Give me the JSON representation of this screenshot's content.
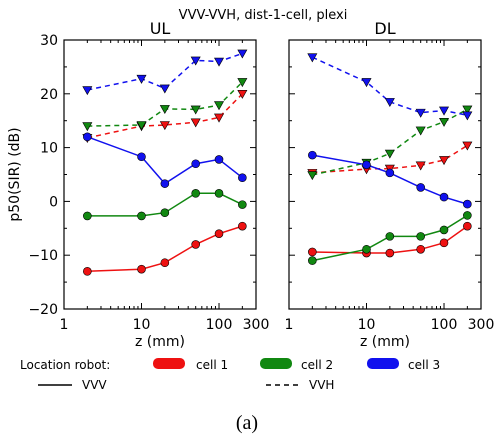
{
  "figure": {
    "title": "VVV-VVH, dist-1-cell, plexi",
    "caption": "(a)"
  },
  "legend": {
    "location_label": "Location robot:",
    "items": [
      {
        "label": "cell 1",
        "color": "#ee1111"
      },
      {
        "label": "cell 2",
        "color": "#118811"
      },
      {
        "label": "cell 3",
        "color": "#1111ee"
      }
    ],
    "solid_label": "VVV",
    "dashed_label": "VVH"
  },
  "chart_data": [
    {
      "type": "line",
      "title": "UL",
      "xlabel": "z (mm)",
      "ylabel": "p50(SIR) (dB)",
      "xscale": "log",
      "xlim": [
        1,
        300
      ],
      "ylim": [
        -20,
        30
      ],
      "xticks": [
        "1",
        "10",
        "100",
        "300"
      ],
      "yticks": [
        "30",
        "20",
        "10",
        "0",
        "−10",
        "−20"
      ],
      "x": [
        2,
        10,
        20,
        50,
        100,
        200
      ],
      "series": [
        {
          "name": "cell 1",
          "style": "VVV",
          "color": "#ee1111",
          "values": [
            -13,
            -12.6,
            -11.4,
            -8,
            -6,
            -4.6
          ]
        },
        {
          "name": "cell 2",
          "style": "VVV",
          "color": "#118811",
          "values": [
            -2.7,
            -2.7,
            -2.1,
            1.5,
            1.5,
            -0.6
          ]
        },
        {
          "name": "cell 3",
          "style": "VVV",
          "color": "#1111ee",
          "values": [
            12,
            8.3,
            3.3,
            7,
            7.8,
            4.4
          ]
        },
        {
          "name": "cell 1",
          "style": "VVH",
          "color": "#ee1111",
          "values": [
            11.8,
            14,
            14.2,
            14.7,
            15.6,
            20
          ]
        },
        {
          "name": "cell 2",
          "style": "VVH",
          "color": "#118811",
          "values": [
            14,
            14.2,
            17.2,
            17.1,
            17.9,
            22.2
          ]
        },
        {
          "name": "cell 3",
          "style": "VVH",
          "color": "#1111ee",
          "values": [
            20.7,
            22.8,
            21,
            26.2,
            26,
            27.5
          ]
        }
      ]
    },
    {
      "type": "line",
      "title": "DL",
      "xlabel": "z (mm)",
      "ylabel": "",
      "xscale": "log",
      "xlim": [
        1,
        300
      ],
      "ylim": [
        -20,
        30
      ],
      "xticks": [
        "1",
        "10",
        "100",
        "300"
      ],
      "yticks": [],
      "x": [
        2,
        10,
        20,
        50,
        100,
        200
      ],
      "series": [
        {
          "name": "cell 1",
          "style": "VVV",
          "color": "#ee1111",
          "values": [
            -9.4,
            -9.6,
            -9.6,
            -8.9,
            -7.7,
            -4.6
          ]
        },
        {
          "name": "cell 2",
          "style": "VVV",
          "color": "#118811",
          "values": [
            -11,
            -8.9,
            -6.5,
            -6.5,
            -5.3,
            -2.6
          ]
        },
        {
          "name": "cell 3",
          "style": "VVV",
          "color": "#1111ee",
          "values": [
            8.6,
            6.8,
            5.3,
            2.6,
            0.8,
            -0.5
          ]
        },
        {
          "name": "cell 1",
          "style": "VVH",
          "color": "#ee1111",
          "values": [
            5.3,
            6,
            6.1,
            6.7,
            7.7,
            10.4
          ]
        },
        {
          "name": "cell 2",
          "style": "VVH",
          "color": "#118811",
          "values": [
            4.9,
            7.2,
            8.9,
            13.2,
            14.8,
            17.1
          ]
        },
        {
          "name": "cell 3",
          "style": "VVH",
          "color": "#1111ee",
          "values": [
            26.8,
            22.2,
            18.5,
            16.5,
            16.9,
            16
          ]
        }
      ]
    }
  ]
}
